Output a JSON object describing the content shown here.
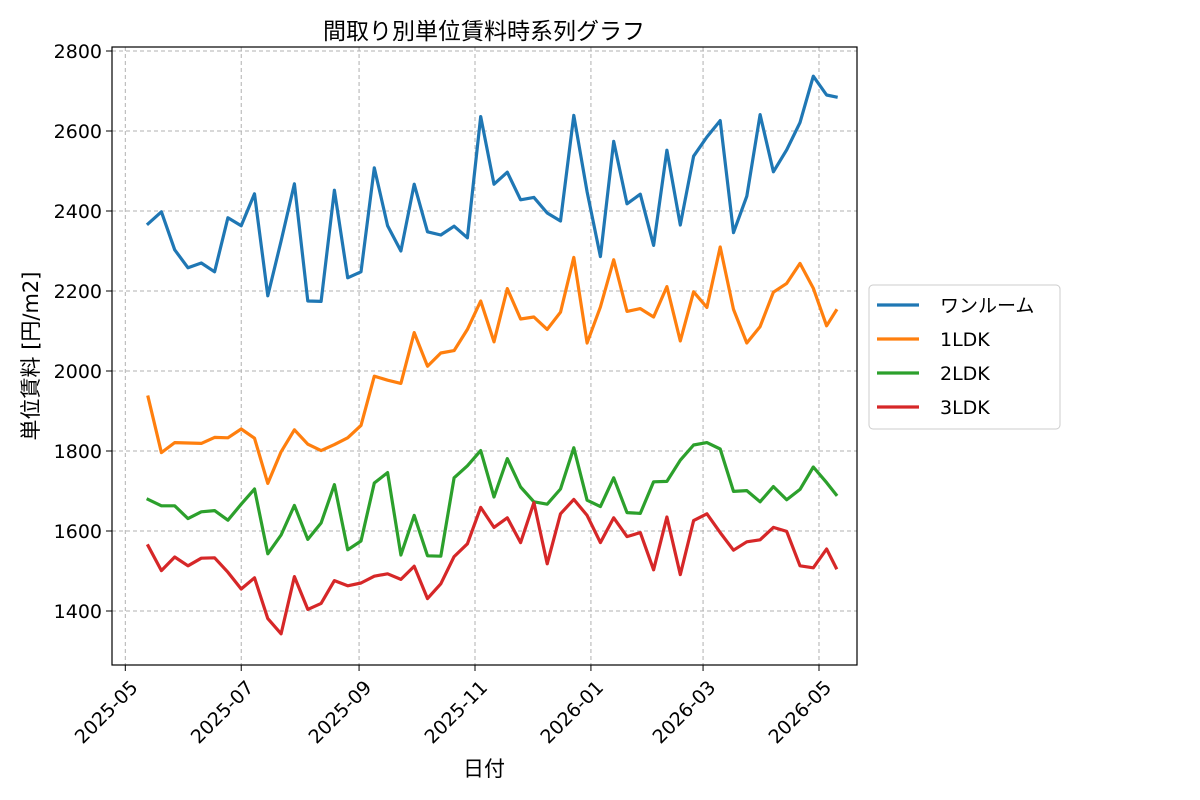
{
  "chart_data": {
    "type": "line",
    "title": "間取り別単位賃料時系列グラフ",
    "xlabel": "日付",
    "ylabel": "単位賃料 [円/m2]",
    "ylim": [
      1265,
      2810
    ],
    "yticks": [
      1400,
      1600,
      1800,
      2000,
      2200,
      2400,
      2600,
      2800
    ],
    "xlim": [
      "2025-04-24",
      "2026-05-21"
    ],
    "xticks": [
      "2025-05-01",
      "2025-07-01",
      "2025-09-01",
      "2025-11-01",
      "2026-01-01",
      "2026-03-01",
      "2026-05-01"
    ],
    "xtick_labels": [
      "2025-05",
      "2025-07",
      "2025-09",
      "2025-11",
      "2026-01",
      "2026-03",
      "2026-05"
    ],
    "grid": true,
    "legend_position": "outside-right",
    "x": [
      "2025-05-13",
      "2025-05-20",
      "2025-05-27",
      "2025-06-03",
      "2025-06-10",
      "2025-06-17",
      "2025-06-24",
      "2025-07-01",
      "2025-07-08",
      "2025-07-15",
      "2025-07-22",
      "2025-07-29",
      "2025-08-05",
      "2025-08-12",
      "2025-08-19",
      "2025-08-26",
      "2025-09-02",
      "2025-09-09",
      "2025-09-16",
      "2025-09-23",
      "2025-09-30",
      "2025-10-07",
      "2025-10-14",
      "2025-10-21",
      "2025-10-28",
      "2025-11-04",
      "2025-11-11",
      "2025-11-18",
      "2025-11-25",
      "2025-12-02",
      "2025-12-09",
      "2025-12-16",
      "2025-12-23",
      "2025-12-30",
      "2026-01-06",
      "2026-01-13",
      "2026-01-20",
      "2026-01-27",
      "2026-02-03",
      "2026-02-10",
      "2026-02-17",
      "2026-02-24",
      "2026-03-03",
      "2026-03-10",
      "2026-03-17",
      "2026-03-24",
      "2026-03-31",
      "2026-04-07",
      "2026-04-14",
      "2026-04-21",
      "2026-04-28",
      "2026-05-05",
      "2026-05-10"
    ],
    "series": [
      {
        "name": "ワンルーム",
        "color": "#1f77b4",
        "values": [
          2368,
          2398,
          2303,
          2258,
          2270,
          2248,
          2383,
          2363,
          2443,
          2188,
          2325,
          2468,
          2175,
          2174,
          2452,
          2233,
          2248,
          2508,
          2363,
          2300,
          2467,
          2348,
          2340,
          2362,
          2333,
          2636,
          2467,
          2497,
          2428,
          2434,
          2395,
          2375,
          2639,
          2448,
          2286,
          2574,
          2418,
          2442,
          2314,
          2552,
          2365,
          2537,
          2585,
          2626,
          2346,
          2437,
          2641,
          2498,
          2553,
          2621,
          2737,
          2690,
          2685
        ]
      },
      {
        "name": "1LDK",
        "color": "#ff7f0e",
        "values": [
          1935,
          1796,
          1821,
          1820,
          1819,
          1834,
          1833,
          1855,
          1832,
          1719,
          1798,
          1853,
          1817,
          1801,
          1816,
          1833,
          1864,
          1987,
          1977,
          1969,
          2096,
          2012,
          2045,
          2051,
          2104,
          2175,
          2073,
          2206,
          2130,
          2135,
          2104,
          2147,
          2284,
          2070,
          2160,
          2278,
          2149,
          2156,
          2135,
          2211,
          2075,
          2198,
          2159,
          2310,
          2154,
          2070,
          2111,
          2197,
          2219,
          2269,
          2207,
          2113,
          2151
        ]
      },
      {
        "name": "2LDK",
        "color": "#2ca02c",
        "values": [
          1679,
          1663,
          1663,
          1631,
          1648,
          1651,
          1627,
          1667,
          1705,
          1543,
          1590,
          1664,
          1579,
          1620,
          1716,
          1553,
          1575,
          1720,
          1746,
          1540,
          1639,
          1538,
          1537,
          1733,
          1763,
          1801,
          1685,
          1781,
          1710,
          1673,
          1667,
          1705,
          1808,
          1677,
          1661,
          1733,
          1646,
          1644,
          1723,
          1724,
          1777,
          1815,
          1821,
          1805,
          1699,
          1701,
          1673,
          1711,
          1678,
          1704,
          1760,
          1721,
          1691
        ]
      },
      {
        "name": "3LDK",
        "color": "#d62728",
        "values": [
          1563,
          1501,
          1535,
          1513,
          1532,
          1533,
          1497,
          1455,
          1483,
          1381,
          1343,
          1486,
          1404,
          1419,
          1476,
          1463,
          1470,
          1487,
          1493,
          1479,
          1512,
          1431,
          1468,
          1536,
          1568,
          1659,
          1609,
          1633,
          1571,
          1671,
          1518,
          1643,
          1679,
          1639,
          1571,
          1633,
          1586,
          1596,
          1503,
          1635,
          1491,
          1626,
          1643,
          1596,
          1552,
          1573,
          1578,
          1609,
          1599,
          1513,
          1508,
          1555,
          1508
        ]
      }
    ]
  }
}
